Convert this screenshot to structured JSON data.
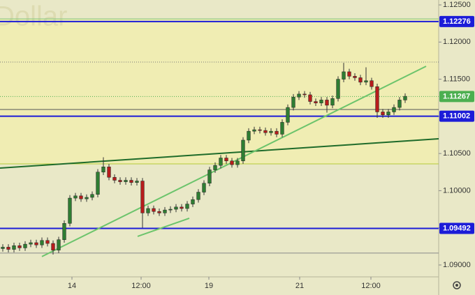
{
  "chart_data": {
    "type": "candlestick",
    "title": "Dollar",
    "x": [
      0,
      1,
      2,
      3,
      4,
      5,
      6,
      7,
      8,
      9,
      10,
      11,
      12,
      13,
      14,
      15,
      16,
      17,
      18,
      19,
      20,
      21,
      22,
      23,
      24,
      25,
      26,
      27,
      28,
      29,
      30,
      31,
      32,
      33,
      34,
      35,
      36,
      37,
      38,
      39,
      40,
      41,
      42,
      43,
      44,
      45,
      46,
      47,
      48,
      49,
      50,
      51,
      52,
      53,
      54,
      55,
      56,
      57,
      58,
      59,
      60,
      61,
      62,
      63,
      64,
      65,
      66,
      67,
      68,
      69,
      70,
      71,
      72
    ],
    "open": [
      1.0922,
      1.0924,
      1.0921,
      1.0926,
      1.0923,
      1.0928,
      1.093,
      1.0927,
      1.0933,
      1.0929,
      1.092,
      1.0934,
      1.0956,
      1.099,
      1.0993,
      1.0989,
      1.0991,
      1.0995,
      1.1025,
      1.1032,
      1.1018,
      1.1014,
      1.1012,
      1.1014,
      1.1011,
      1.1013,
      1.097,
      1.0976,
      1.0972,
      1.097,
      1.0974,
      1.0975,
      1.0978,
      1.0976,
      1.0982,
      1.0988,
      1.0998,
      1.101,
      1.1028,
      1.1034,
      1.1044,
      1.104,
      1.1035,
      1.104,
      1.1068,
      1.108,
      1.1082,
      1.1081,
      1.1078,
      1.108,
      1.1076,
      1.1092,
      1.1112,
      1.1126,
      1.113,
      1.1129,
      1.112,
      1.1118,
      1.1122,
      1.1115,
      1.1124,
      1.115,
      1.116,
      1.1154,
      1.1152,
      1.1146,
      1.1148,
      1.114,
      1.1106,
      1.1102,
      1.1106,
      1.1112,
      1.1122
    ],
    "high": [
      1.0928,
      1.0928,
      1.093,
      1.093,
      1.0932,
      1.0934,
      1.0934,
      1.0937,
      1.0937,
      1.0933,
      1.0938,
      1.096,
      1.0994,
      1.0997,
      1.0997,
      1.0995,
      1.0999,
      1.1029,
      1.1045,
      1.1036,
      1.1022,
      1.1018,
      1.1018,
      1.1018,
      1.1017,
      1.1017,
      1.098,
      1.098,
      1.0976,
      1.0978,
      1.0979,
      1.0982,
      1.0982,
      1.0986,
      1.0992,
      1.1002,
      1.1014,
      1.1032,
      1.1038,
      1.1048,
      1.1048,
      1.1044,
      1.1044,
      1.1072,
      1.1084,
      1.1086,
      1.1086,
      1.1085,
      1.1084,
      1.1084,
      1.1096,
      1.1116,
      1.113,
      1.1134,
      1.1134,
      1.1133,
      1.1124,
      1.1126,
      1.1126,
      1.1128,
      1.1154,
      1.1172,
      1.1164,
      1.1158,
      1.1156,
      1.1166,
      1.1152,
      1.1144,
      1.111,
      1.111,
      1.1116,
      1.1126,
      1.1131
    ],
    "low": [
      1.0918,
      1.0917,
      1.0917,
      1.0919,
      1.0919,
      1.0924,
      1.0923,
      1.0923,
      1.0925,
      1.0914,
      1.0916,
      1.093,
      1.0952,
      1.0986,
      1.0985,
      1.0985,
      1.0987,
      1.0991,
      1.1021,
      1.1014,
      1.101,
      1.1008,
      1.1008,
      1.1007,
      1.1007,
      1.095,
      1.0966,
      1.0968,
      1.0966,
      1.0966,
      1.097,
      1.0971,
      1.0972,
      1.0972,
      1.0978,
      1.0984,
      1.0994,
      1.1006,
      1.1024,
      1.103,
      1.1036,
      1.1031,
      1.1031,
      1.1036,
      1.1064,
      1.1076,
      1.1077,
      1.1074,
      1.1074,
      1.1072,
      1.1072,
      1.1088,
      1.1108,
      1.1122,
      1.1125,
      1.1116,
      1.1114,
      1.1114,
      1.1105,
      1.1111,
      1.112,
      1.1146,
      1.115,
      1.1148,
      1.1142,
      1.1142,
      1.1136,
      1.1098,
      1.1098,
      1.1098,
      1.1102,
      1.1108,
      1.1118
    ],
    "close": [
      1.0924,
      1.0921,
      1.0926,
      1.0923,
      1.0928,
      1.093,
      1.0927,
      1.0933,
      1.0929,
      1.092,
      1.0934,
      1.0956,
      1.099,
      1.0993,
      1.0989,
      1.0991,
      1.0995,
      1.1025,
      1.1032,
      1.1018,
      1.1014,
      1.1012,
      1.1014,
      1.1011,
      1.1013,
      1.097,
      1.0976,
      1.0972,
      1.097,
      1.0974,
      1.0975,
      1.0978,
      1.0976,
      1.0982,
      1.0988,
      1.0998,
      1.101,
      1.1028,
      1.1034,
      1.1044,
      1.104,
      1.1035,
      1.104,
      1.1068,
      1.108,
      1.1082,
      1.1081,
      1.1078,
      1.108,
      1.1076,
      1.1092,
      1.1112,
      1.1126,
      1.113,
      1.1129,
      1.112,
      1.1118,
      1.1122,
      1.1115,
      1.1124,
      1.115,
      1.116,
      1.1154,
      1.1152,
      1.1146,
      1.1148,
      1.114,
      1.1106,
      1.1102,
      1.1106,
      1.1112,
      1.1122,
      1.1127
    ],
    "up_color": "#2e7d32",
    "down_color": "#b71c1c",
    "xlim": [
      -0.5,
      78
    ],
    "ylim": [
      1.0884,
      1.12566
    ],
    "xticks": [
      {
        "value": 12.375,
        "label": "14"
      },
      {
        "value": 24.75,
        "label": "12:00"
      },
      {
        "value": 36.875,
        "label": "19"
      },
      {
        "value": 53.125,
        "label": "21"
      },
      {
        "value": 65.875,
        "label": "12:00"
      }
    ],
    "yticks": [
      {
        "value": 1.125,
        "label": "1.12500"
      },
      {
        "value": 1.12,
        "label": "1.12000"
      },
      {
        "value": 1.115,
        "label": "1.11500"
      },
      {
        "value": 1.11,
        "label": "1.11000"
      },
      {
        "value": 1.105,
        "label": "1.10500"
      },
      {
        "value": 1.1,
        "label": "1.10000"
      },
      {
        "value": 1.095,
        "label": "1.09500"
      },
      {
        "value": 1.09,
        "label": "1.09000"
      }
    ],
    "zones": [
      {
        "from": 1.10361,
        "to": 1.12312,
        "color": "#f0edb3"
      }
    ],
    "levels": [
      {
        "value": 1.12312,
        "color": "#7cc47c",
        "labeled": false,
        "dashed": false
      },
      {
        "value": 1.12276,
        "color": "#1c1cd8",
        "labeled": true,
        "dashed": false
      },
      {
        "value": 1.11731,
        "color": "#777777",
        "labeled": false,
        "dashed": true
      },
      {
        "value": 1.11267,
        "color": "#4caf50",
        "labeled": true,
        "dashed": true
      },
      {
        "value": 1.11093,
        "color": "#555555",
        "labeled": false,
        "dashed": false
      },
      {
        "value": 1.11002,
        "color": "#1c1cd8",
        "labeled": true,
        "dashed": false
      },
      {
        "value": 1.10361,
        "color": "#b5cc3a",
        "labeled": false,
        "dashed": false
      },
      {
        "value": 1.09492,
        "color": "#1c1cd8",
        "labeled": true,
        "dashed": false
      },
      {
        "value": 1.0916,
        "color": "#888888",
        "labeled": false,
        "dashed": false
      }
    ],
    "trendlines": [
      {
        "x": [
          -0.5,
          78
        ],
        "y": [
          1.10304,
          1.10698
        ],
        "color": "#1e6b2a"
      },
      {
        "x": [
          7,
          75.75
        ],
        "y": [
          1.09113,
          1.11674
        ],
        "color": "#6cc46c"
      },
      {
        "x": [
          24.125,
          33.375
        ],
        "y": [
          1.09385,
          1.09629
        ],
        "color": "#6cc46c"
      }
    ]
  }
}
